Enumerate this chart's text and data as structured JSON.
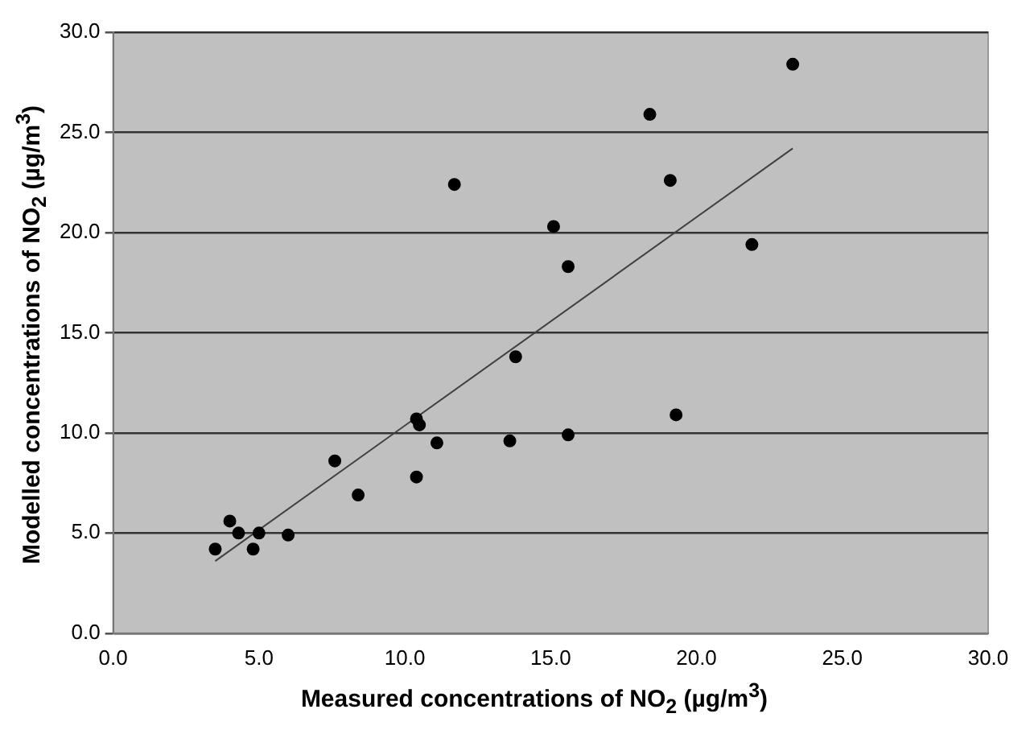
{
  "chart_data": {
    "type": "scatter",
    "xlabel": "Measured concentrations of NO$_{2}$ (µg/m$^{3}$)",
    "ylabel": "Modelled concentrations of NO$_{2}$ (µg/m$^{3}$)",
    "xlim": [
      0,
      30
    ],
    "ylim": [
      0,
      30
    ],
    "xticks": [
      {
        "value": 0,
        "label": "0.0"
      },
      {
        "value": 5,
        "label": "5.0"
      },
      {
        "value": 10,
        "label": "10.0"
      },
      {
        "value": 15,
        "label": "15.0"
      },
      {
        "value": 20,
        "label": "20.0"
      },
      {
        "value": 25,
        "label": "25.0"
      },
      {
        "value": 30,
        "label": "30.0"
      }
    ],
    "yticks": [
      {
        "value": 0,
        "label": "0.0"
      },
      {
        "value": 5,
        "label": "5.0"
      },
      {
        "value": 10,
        "label": "10.0"
      },
      {
        "value": 15,
        "label": "15.0"
      },
      {
        "value": 20,
        "label": "20.0"
      },
      {
        "value": 25,
        "label": "25.0"
      },
      {
        "value": 30,
        "label": "30.0"
      }
    ],
    "grid": "y",
    "legend": false,
    "marker": "circle",
    "series": [
      {
        "color": "#000000",
        "x": [
          3.5,
          4.0,
          4.3,
          4.8,
          5.0,
          6.0,
          7.6,
          8.4,
          10.4,
          10.4,
          10.5,
          11.1,
          13.6,
          13.8,
          11.7,
          15.1,
          15.6,
          15.6,
          18.4,
          19.1,
          19.3,
          21.9,
          23.3
        ],
        "values": [
          4.2,
          5.6,
          5.0,
          4.2,
          5.0,
          4.9,
          8.6,
          6.9,
          7.8,
          10.7,
          10.4,
          9.5,
          9.6,
          13.8,
          22.4,
          20.3,
          18.3,
          9.9,
          25.9,
          22.6,
          10.9,
          19.4,
          28.4
        ]
      },
      {
        "type": "line",
        "color": "#404040",
        "marker": "none",
        "x": [
          3.5,
          23.3
        ],
        "values": [
          3.6,
          24.2
        ]
      }
    ]
  }
}
